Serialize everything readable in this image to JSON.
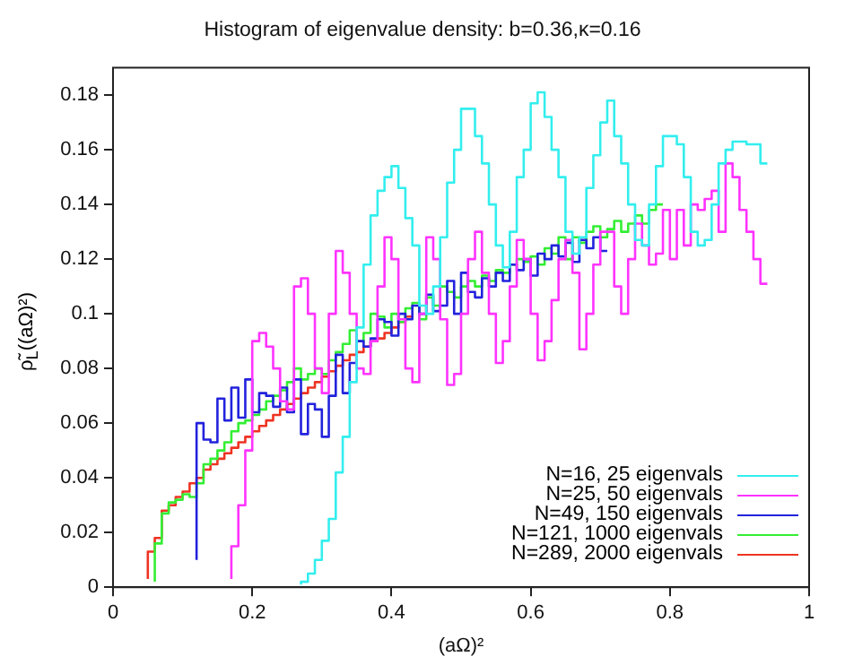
{
  "chart_data": {
    "type": "step",
    "title": "Histogram of eigenvalue density: b=0.36,κ=0.16",
    "xlabel": "(aΩ)²",
    "ylabel": "ρ̃$_{L}$((aΩ)²)",
    "xlim": [
      0,
      1
    ],
    "xticks": [
      0,
      0.2,
      0.4,
      0.6,
      0.8,
      1
    ],
    "ylim": [
      0,
      0.19
    ],
    "yticks": [
      0,
      0.02,
      0.04,
      0.06,
      0.08,
      0.1,
      0.12,
      0.14,
      0.16,
      0.18
    ],
    "grid": false,
    "legend": "bottom right",
    "marker": "none",
    "series": [
      {
        "name": "N=16, 25 eigenvals",
        "color": "#33eeee",
        "x": [
          0.27,
          0.28,
          0.29,
          0.3,
          0.31,
          0.32,
          0.33,
          0.34,
          0.35,
          0.36,
          0.37,
          0.38,
          0.39,
          0.4,
          0.41,
          0.42,
          0.43,
          0.44,
          0.45,
          0.46,
          0.47,
          0.48,
          0.49,
          0.5,
          0.51,
          0.52,
          0.53,
          0.54,
          0.55,
          0.56,
          0.57,
          0.58,
          0.59,
          0.6,
          0.61,
          0.62,
          0.63,
          0.64,
          0.65,
          0.66,
          0.67,
          0.68,
          0.69,
          0.7,
          0.71,
          0.72,
          0.73,
          0.74,
          0.75,
          0.76,
          0.77,
          0.78,
          0.79,
          0.8,
          0.81,
          0.82,
          0.83,
          0.84,
          0.85,
          0.86,
          0.87,
          0.88,
          0.89,
          0.9,
          0.91,
          0.92,
          0.93,
          0.94
        ],
        "values": [
          0.001,
          0.002,
          0.005,
          0.01,
          0.017,
          0.025,
          0.042,
          0.055,
          0.075,
          0.095,
          0.118,
          0.136,
          0.145,
          0.15,
          0.154,
          0.146,
          0.135,
          0.125,
          0.103,
          0.1,
          0.11,
          0.128,
          0.148,
          0.16,
          0.175,
          0.175,
          0.165,
          0.155,
          0.14,
          0.125,
          0.117,
          0.13,
          0.15,
          0.16,
          0.177,
          0.181,
          0.172,
          0.16,
          0.15,
          0.13,
          0.122,
          0.128,
          0.146,
          0.158,
          0.17,
          0.178,
          0.165,
          0.155,
          0.14,
          0.127,
          0.125,
          0.14,
          0.154,
          0.165,
          0.165,
          0.162,
          0.15,
          0.13,
          0.125,
          0.127,
          0.14,
          0.155,
          0.16,
          0.163,
          0.163,
          0.162,
          0.162,
          0.155
        ]
      },
      {
        "name": "N=25, 50 eigenvals",
        "color": "#ff33ff",
        "x": [
          0.17,
          0.18,
          0.19,
          0.2,
          0.21,
          0.22,
          0.23,
          0.24,
          0.25,
          0.26,
          0.27,
          0.28,
          0.29,
          0.3,
          0.31,
          0.32,
          0.33,
          0.34,
          0.35,
          0.36,
          0.37,
          0.38,
          0.39,
          0.4,
          0.41,
          0.42,
          0.43,
          0.44,
          0.45,
          0.46,
          0.47,
          0.48,
          0.49,
          0.5,
          0.51,
          0.52,
          0.53,
          0.54,
          0.55,
          0.56,
          0.57,
          0.58,
          0.59,
          0.6,
          0.61,
          0.62,
          0.63,
          0.64,
          0.65,
          0.66,
          0.67,
          0.68,
          0.69,
          0.7,
          0.71,
          0.72,
          0.73,
          0.74,
          0.75,
          0.76,
          0.77,
          0.78,
          0.79,
          0.8,
          0.81,
          0.82,
          0.83,
          0.84,
          0.85,
          0.86,
          0.87,
          0.88,
          0.89,
          0.9,
          0.91,
          0.92,
          0.93,
          0.94
        ],
        "values": [
          0.003,
          0.015,
          0.03,
          0.05,
          0.09,
          0.093,
          0.088,
          0.08,
          0.068,
          0.065,
          0.11,
          0.113,
          0.1,
          0.08,
          0.071,
          0.1,
          0.123,
          0.115,
          0.1,
          0.08,
          0.078,
          0.09,
          0.11,
          0.128,
          0.12,
          0.098,
          0.08,
          0.075,
          0.1,
          0.128,
          0.12,
          0.098,
          0.074,
          0.078,
          0.1,
          0.12,
          0.13,
          0.115,
          0.1,
          0.082,
          0.09,
          0.11,
          0.127,
          0.12,
          0.1,
          0.083,
          0.09,
          0.105,
          0.12,
          0.127,
          0.115,
          0.087,
          0.1,
          0.118,
          0.13,
          0.13,
          0.11,
          0.1,
          0.12,
          0.133,
          0.125,
          0.118,
          0.122,
          0.138,
          0.12,
          0.138,
          0.125,
          0.14,
          0.138,
          0.142,
          0.145,
          0.13,
          0.155,
          0.15,
          0.138,
          0.13,
          0.12,
          0.111
        ]
      },
      {
        "name": "N=49, 150 eigenvals",
        "color": "#2222dd",
        "x": [
          0.12,
          0.13,
          0.14,
          0.15,
          0.16,
          0.17,
          0.18,
          0.19,
          0.2,
          0.21,
          0.22,
          0.23,
          0.24,
          0.25,
          0.26,
          0.27,
          0.28,
          0.29,
          0.3,
          0.31,
          0.32,
          0.33,
          0.34,
          0.35,
          0.36,
          0.37,
          0.38,
          0.39,
          0.4,
          0.41,
          0.42,
          0.43,
          0.44,
          0.45,
          0.46,
          0.47,
          0.48,
          0.49,
          0.5,
          0.51,
          0.52,
          0.53,
          0.54,
          0.55,
          0.56,
          0.57,
          0.58,
          0.59,
          0.6,
          0.61,
          0.62,
          0.63,
          0.64,
          0.65,
          0.66,
          0.67,
          0.68,
          0.69,
          0.7,
          0.71
        ],
        "values": [
          0.01,
          0.06,
          0.054,
          0.053,
          0.069,
          0.061,
          0.073,
          0.062,
          0.076,
          0.064,
          0.071,
          0.07,
          0.066,
          0.073,
          0.064,
          0.076,
          0.056,
          0.067,
          0.065,
          0.055,
          0.07,
          0.085,
          0.071,
          0.082,
          0.09,
          0.088,
          0.091,
          0.098,
          0.097,
          0.092,
          0.1,
          0.098,
          0.103,
          0.1,
          0.107,
          0.101,
          0.103,
          0.112,
          0.1,
          0.115,
          0.108,
          0.106,
          0.113,
          0.11,
          0.115,
          0.112,
          0.118,
          0.116,
          0.12,
          0.114,
          0.122,
          0.12,
          0.125,
          0.121,
          0.126,
          0.119,
          0.127,
          0.124,
          0.128,
          0.123
        ]
      },
      {
        "name": "N=121, 1000 eigenvals",
        "color": "#33ee33",
        "x": [
          0.06,
          0.07,
          0.08,
          0.09,
          0.1,
          0.11,
          0.12,
          0.13,
          0.14,
          0.15,
          0.16,
          0.17,
          0.18,
          0.19,
          0.2,
          0.21,
          0.22,
          0.23,
          0.24,
          0.25,
          0.26,
          0.27,
          0.28,
          0.29,
          0.3,
          0.31,
          0.32,
          0.33,
          0.34,
          0.35,
          0.36,
          0.37,
          0.38,
          0.39,
          0.4,
          0.41,
          0.42,
          0.43,
          0.44,
          0.45,
          0.46,
          0.47,
          0.48,
          0.49,
          0.5,
          0.51,
          0.52,
          0.53,
          0.54,
          0.55,
          0.56,
          0.57,
          0.58,
          0.59,
          0.6,
          0.61,
          0.62,
          0.63,
          0.64,
          0.65,
          0.66,
          0.67,
          0.68,
          0.69,
          0.7,
          0.71,
          0.72,
          0.73,
          0.74,
          0.75,
          0.76,
          0.77,
          0.78,
          0.79
        ],
        "values": [
          0.002,
          0.016,
          0.027,
          0.031,
          0.032,
          0.034,
          0.033,
          0.038,
          0.045,
          0.047,
          0.05,
          0.053,
          0.057,
          0.06,
          0.061,
          0.063,
          0.065,
          0.068,
          0.07,
          0.072,
          0.075,
          0.08,
          0.076,
          0.078,
          0.08,
          0.078,
          0.083,
          0.086,
          0.089,
          0.094,
          0.09,
          0.093,
          0.1,
          0.099,
          0.095,
          0.1,
          0.097,
          0.102,
          0.104,
          0.098,
          0.106,
          0.103,
          0.11,
          0.108,
          0.106,
          0.11,
          0.112,
          0.11,
          0.114,
          0.112,
          0.116,
          0.115,
          0.118,
          0.12,
          0.119,
          0.121,
          0.118,
          0.124,
          0.122,
          0.128,
          0.12,
          0.128,
          0.126,
          0.13,
          0.132,
          0.128,
          0.131,
          0.134,
          0.13,
          0.133,
          0.136,
          0.133,
          0.138,
          0.14
        ]
      },
      {
        "name": "N=289, 2000 eigenvals",
        "color": "#ee3322",
        "x": [
          0.05,
          0.06,
          0.07,
          0.08,
          0.09,
          0.1,
          0.11,
          0.12,
          0.13,
          0.14,
          0.15,
          0.16,
          0.17,
          0.18,
          0.19,
          0.2,
          0.21,
          0.22,
          0.23,
          0.24,
          0.25,
          0.26,
          0.27,
          0.28,
          0.29,
          0.3,
          0.31,
          0.32,
          0.33,
          0.34,
          0.35,
          0.36,
          0.37,
          0.38,
          0.39,
          0.4,
          0.41,
          0.42,
          0.43
        ],
        "values": [
          0.003,
          0.013,
          0.018,
          0.028,
          0.03,
          0.033,
          0.035,
          0.038,
          0.04,
          0.043,
          0.045,
          0.047,
          0.049,
          0.051,
          0.053,
          0.055,
          0.057,
          0.059,
          0.061,
          0.063,
          0.065,
          0.067,
          0.069,
          0.071,
          0.073,
          0.075,
          0.077,
          0.079,
          0.081,
          0.083,
          0.085,
          0.086,
          0.088,
          0.09,
          0.091,
          0.093,
          0.095,
          0.097,
          0.099
        ]
      }
    ]
  }
}
